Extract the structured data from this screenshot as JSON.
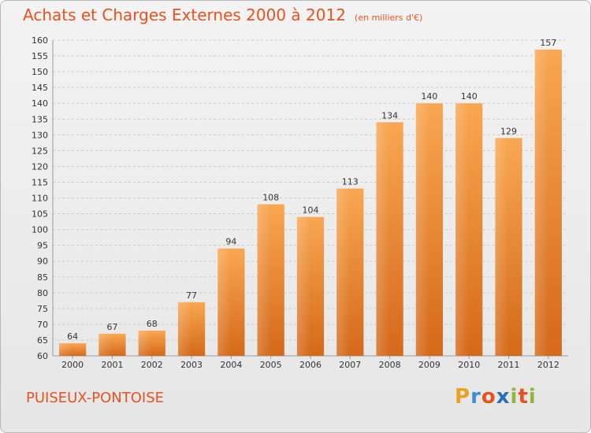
{
  "title": "Achats et Charges Externes 2000 à 2012",
  "unit": "(en milliers d'€)",
  "city": "PUISEUX-PONTOISE",
  "logo": {
    "letters": [
      "P",
      "r",
      "o",
      "x",
      "i",
      "t",
      "i"
    ],
    "colors": [
      "#e8a21f",
      "#3b8fd1",
      "#e8521f",
      "#2a6fb5",
      "#8fb83a",
      "#e8521f",
      "#8fb83a"
    ]
  },
  "colors": {
    "accent": "#e8521f",
    "bar_light": "#f8a653",
    "bar_dark": "#d96f17"
  },
  "chart_data": {
    "type": "bar",
    "categories": [
      "2000",
      "2001",
      "2002",
      "2003",
      "2004",
      "2005",
      "2006",
      "2007",
      "2008",
      "2009",
      "2010",
      "2011",
      "2012"
    ],
    "values": [
      64,
      67,
      68,
      77,
      94,
      108,
      104,
      113,
      134,
      140,
      140,
      129,
      157
    ],
    "ylim": [
      60,
      160
    ],
    "yticks": [
      60,
      65,
      70,
      75,
      80,
      85,
      90,
      95,
      100,
      105,
      110,
      115,
      120,
      125,
      130,
      135,
      140,
      145,
      150,
      155,
      160
    ],
    "grid": true,
    "data_labels": true
  }
}
